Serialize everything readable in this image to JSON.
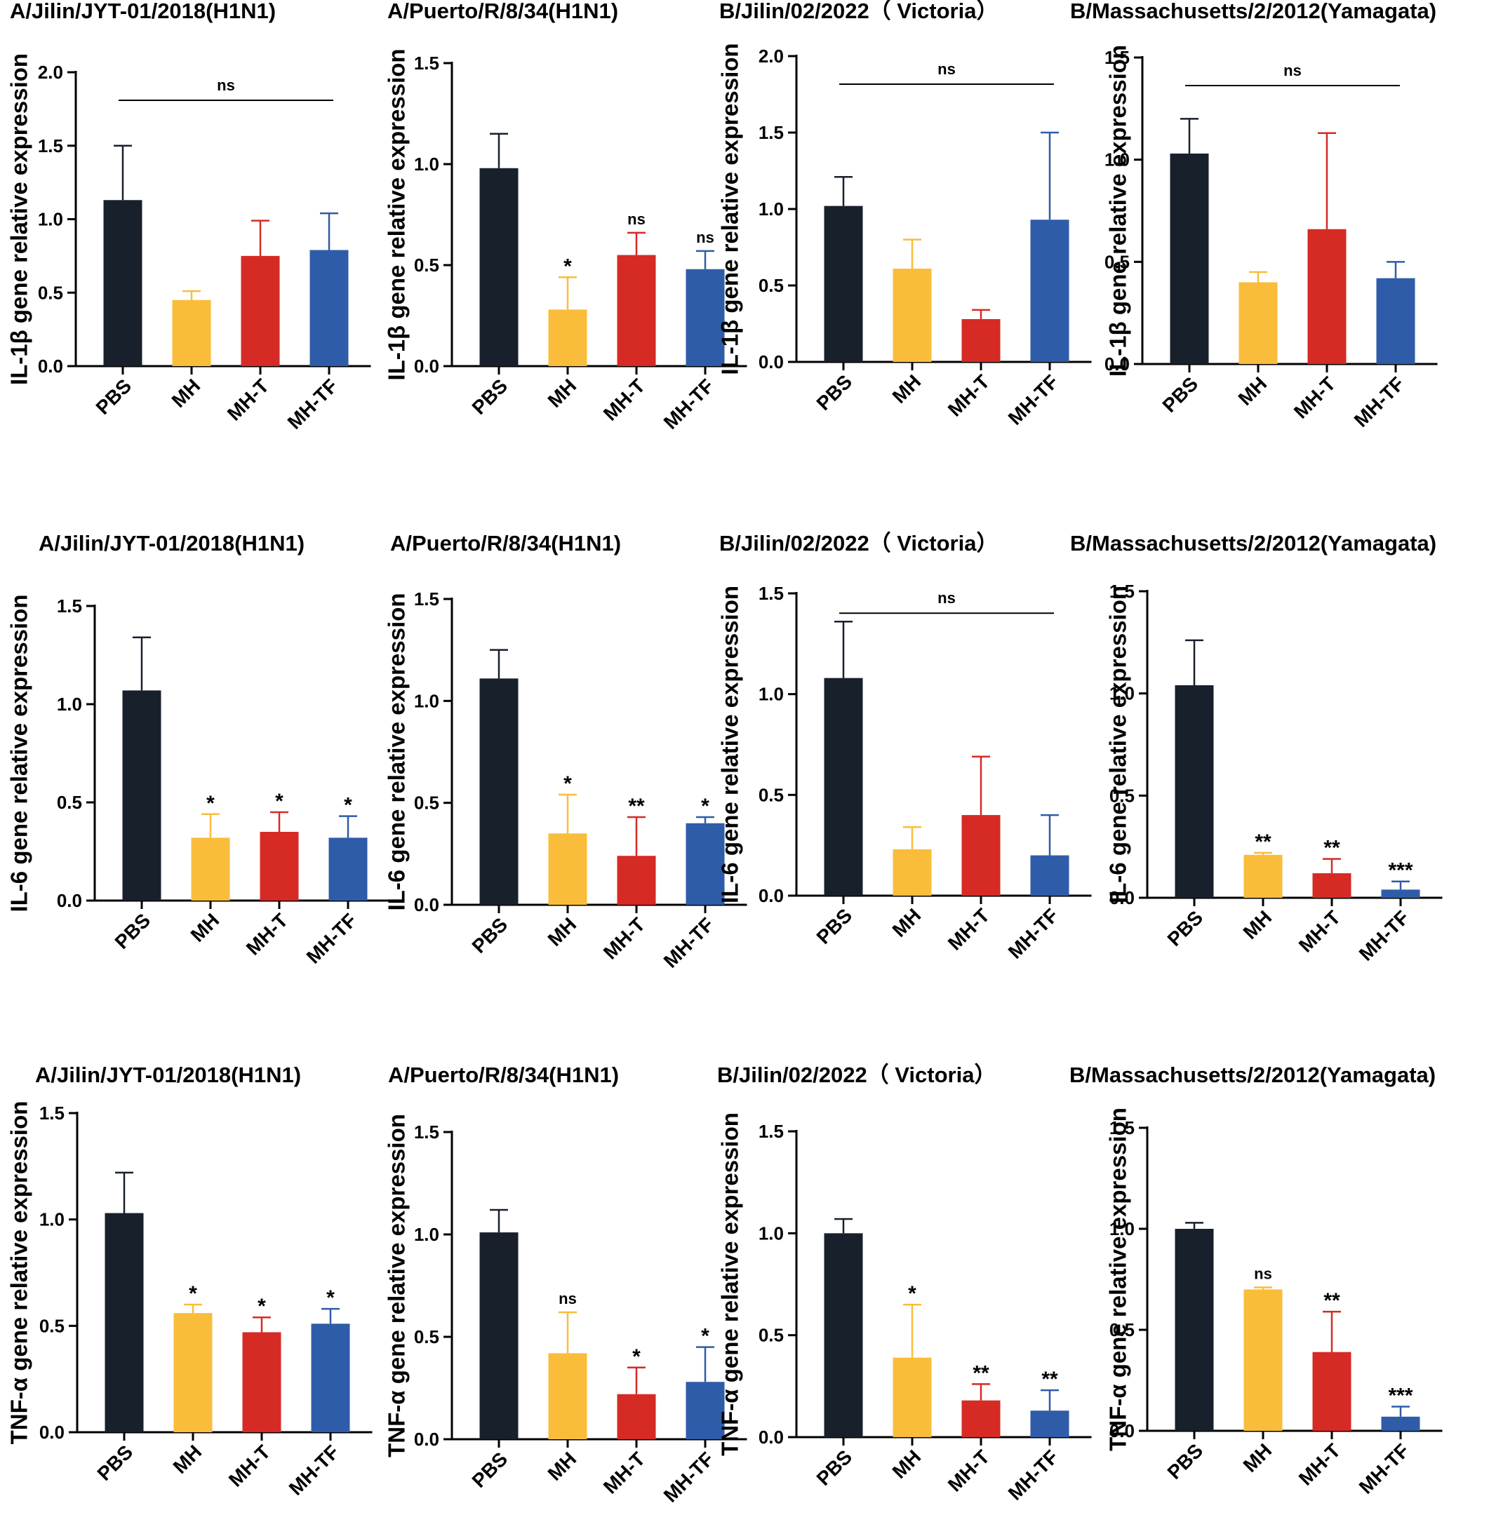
{
  "colors": {
    "PBS": "#18202c",
    "MH": "#f9bd3b",
    "MH-T": "#d62a25",
    "MH-TF": "#2f5ca8",
    "axis": "#000000"
  },
  "chart_data": [
    {
      "type": "bar",
      "title": "A/Jilin/JYT-01/2018(H1N1)",
      "ylabel": "IL-1β gene relative expression",
      "categories": [
        "PBS",
        "MH",
        "MH-T",
        "MH-TF"
      ],
      "values": [
        1.13,
        0.45,
        0.75,
        0.79
      ],
      "errors": [
        0.37,
        0.06,
        0.24,
        0.25
      ],
      "significance": [
        "",
        "",
        "",
        ""
      ],
      "bracket": "ns",
      "ylim": [
        0,
        2.0
      ],
      "yticks": [
        "0.0",
        "0.5",
        "1.0",
        "1.5",
        "2.0"
      ]
    },
    {
      "type": "bar",
      "title": "A/Puerto/R/8/34(H1N1)",
      "ylabel": "IL-1β gene relative expression",
      "categories": [
        "PBS",
        "MH",
        "MH-T",
        "MH-TF"
      ],
      "values": [
        0.98,
        0.28,
        0.55,
        0.48
      ],
      "errors": [
        0.17,
        0.16,
        0.11,
        0.09
      ],
      "significance": [
        "",
        "*",
        "ns",
        "ns"
      ],
      "bracket": "",
      "ylim": [
        0,
        1.5
      ],
      "yticks": [
        "0.0",
        "0.5",
        "1.0",
        "1.5"
      ]
    },
    {
      "type": "bar",
      "title": "B/Jilin/02/2022（ Victoria）",
      "ylabel": "IL-1β gene relative expression",
      "categories": [
        "PBS",
        "MH",
        "MH-T",
        "MH-TF"
      ],
      "values": [
        1.02,
        0.61,
        0.28,
        0.93
      ],
      "errors": [
        0.19,
        0.19,
        0.06,
        0.57
      ],
      "significance": [
        "",
        "",
        "",
        ""
      ],
      "bracket": "ns",
      "ylim": [
        0,
        2.0
      ],
      "yticks": [
        "0.0",
        "0.5",
        "1.0",
        "1.5",
        "2.0"
      ]
    },
    {
      "type": "bar",
      "title": "B/Massachusetts/2/2012(Yamagata)",
      "ylabel": "IL-1β gene relative expression",
      "categories": [
        "PBS",
        "MH",
        "MH-T",
        "MH-TF"
      ],
      "values": [
        1.03,
        0.4,
        0.66,
        0.42
      ],
      "errors": [
        0.17,
        0.05,
        0.47,
        0.08
      ],
      "significance": [
        "",
        "",
        "",
        ""
      ],
      "bracket": "ns",
      "ylim": [
        0,
        1.5
      ],
      "yticks": [
        "0.0",
        "0.5",
        "1.0",
        "1.5"
      ]
    },
    {
      "type": "bar",
      "title": "A/Jilin/JYT-01/2018(H1N1)",
      "ylabel": "IL-6 gene relative expression",
      "categories": [
        "PBS",
        "MH",
        "MH-T",
        "MH-TF"
      ],
      "values": [
        1.07,
        0.32,
        0.35,
        0.32
      ],
      "errors": [
        0.27,
        0.12,
        0.1,
        0.11
      ],
      "significance": [
        "",
        "*",
        "*",
        "*"
      ],
      "bracket": "",
      "ylim": [
        0,
        1.5
      ],
      "yticks": [
        "0.0",
        "0.5",
        "1.0",
        "1.5"
      ]
    },
    {
      "type": "bar",
      "title": "A/Puerto/R/8/34(H1N1)",
      "ylabel": "IL-6 gene relative expression",
      "categories": [
        "PBS",
        "MH",
        "MH-T",
        "MH-TF"
      ],
      "values": [
        1.11,
        0.35,
        0.24,
        0.4
      ],
      "errors": [
        0.14,
        0.19,
        0.19,
        0.03
      ],
      "significance": [
        "",
        "*",
        "**",
        "*"
      ],
      "bracket": "",
      "ylim": [
        0,
        1.5
      ],
      "yticks": [
        "0.0",
        "0.5",
        "1.0",
        "1.5"
      ]
    },
    {
      "type": "bar",
      "title": "B/Jilin/02/2022（ Victoria）",
      "ylabel": "IL-6 gene relative expression",
      "categories": [
        "PBS",
        "MH",
        "MH-T",
        "MH-TF"
      ],
      "values": [
        1.08,
        0.23,
        0.4,
        0.2
      ],
      "errors": [
        0.28,
        0.11,
        0.29,
        0.2
      ],
      "significance": [
        "",
        "",
        "",
        ""
      ],
      "bracket": "ns",
      "ylim": [
        0,
        1.5
      ],
      "yticks": [
        "0.0",
        "0.5",
        "1.0",
        "1.5"
      ]
    },
    {
      "type": "bar",
      "title": "B/Massachusetts/2/2012(Yamagata)",
      "ylabel": "IL-6 gene relative expression",
      "categories": [
        "PBS",
        "MH",
        "MH-T",
        "MH-TF"
      ],
      "values": [
        1.04,
        0.21,
        0.12,
        0.04
      ],
      "errors": [
        0.22,
        0.01,
        0.07,
        0.04
      ],
      "significance": [
        "",
        "**",
        "**",
        "***"
      ],
      "bracket": "",
      "ylim": [
        0,
        1.5
      ],
      "yticks": [
        "0.0",
        "0.5",
        "1.0",
        "1.5"
      ]
    },
    {
      "type": "bar",
      "title": "A/Jilin/JYT-01/2018(H1N1)",
      "ylabel": "TNF-α gene relative expression",
      "categories": [
        "PBS",
        "MH",
        "MH-T",
        "MH-TF"
      ],
      "values": [
        1.03,
        0.56,
        0.47,
        0.51
      ],
      "errors": [
        0.19,
        0.04,
        0.07,
        0.07
      ],
      "significance": [
        "",
        "*",
        "*",
        "*"
      ],
      "bracket": "",
      "ylim": [
        0,
        1.5
      ],
      "yticks": [
        "0.0",
        "0.5",
        "1.0",
        "1.5"
      ]
    },
    {
      "type": "bar",
      "title": "A/Puerto/R/8/34(H1N1)",
      "ylabel": "TNF-α gene relative expression",
      "categories": [
        "PBS",
        "MH",
        "MH-T",
        "MH-TF"
      ],
      "values": [
        1.01,
        0.42,
        0.22,
        0.28
      ],
      "errors": [
        0.11,
        0.2,
        0.13,
        0.17
      ],
      "significance": [
        "",
        "ns",
        "*",
        "*"
      ],
      "bracket": "",
      "ylim": [
        0,
        1.5
      ],
      "yticks": [
        "0.0",
        "0.5",
        "1.0",
        "1.5"
      ]
    },
    {
      "type": "bar",
      "title": "B/Jilin/02/2022（ Victoria）",
      "ylabel": "TNF-α gene relative expression",
      "categories": [
        "PBS",
        "MH",
        "MH-T",
        "MH-TF"
      ],
      "values": [
        1.0,
        0.39,
        0.18,
        0.13
      ],
      "errors": [
        0.07,
        0.26,
        0.08,
        0.1
      ],
      "significance": [
        "",
        "*",
        "**",
        "**"
      ],
      "bracket": "",
      "ylim": [
        0,
        1.5
      ],
      "yticks": [
        "0.0",
        "0.5",
        "1.0",
        "1.5"
      ]
    },
    {
      "type": "bar",
      "title": "B/Massachusetts/2/2012(Yamagata)",
      "ylabel": "TNF-α gene relative expression",
      "categories": [
        "PBS",
        "MH",
        "MH-T",
        "MH-TF"
      ],
      "values": [
        1.0,
        0.7,
        0.39,
        0.07
      ],
      "errors": [
        0.03,
        0.01,
        0.2,
        0.05
      ],
      "significance": [
        "",
        "ns",
        "**",
        "***"
      ],
      "bracket": "",
      "ylim": [
        0,
        1.5
      ],
      "yticks": [
        "0.0",
        "0.5",
        "1.0",
        "1.5"
      ]
    }
  ]
}
